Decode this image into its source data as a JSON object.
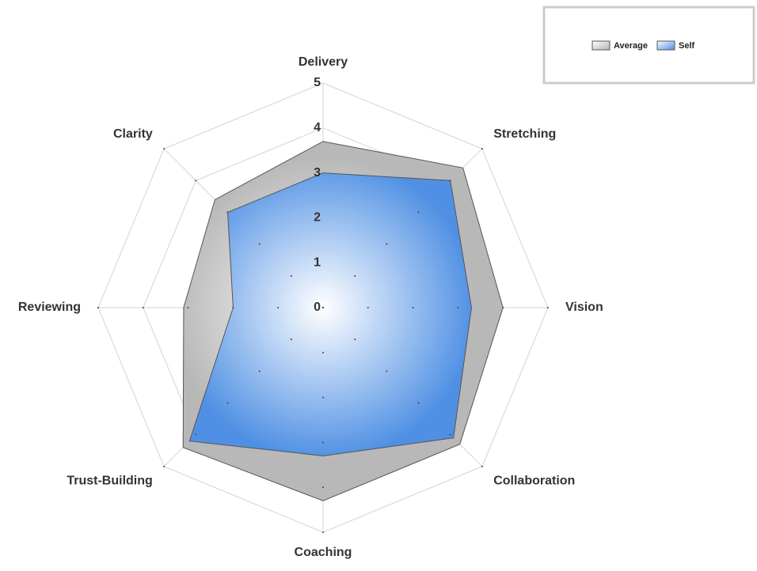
{
  "chart_data": {
    "type": "radar",
    "categories": [
      "Delivery",
      "Stretching",
      "Vision",
      "Collaboration",
      "Coaching",
      "Trust-Building",
      "Reviewing",
      "Clarity"
    ],
    "series": [
      {
        "name": "Average",
        "color": "#b4b4b4",
        "values": [
          3.7,
          4.4,
          4.0,
          4.3,
          4.3,
          4.4,
          3.1,
          3.4
        ]
      },
      {
        "name": "Self",
        "color": "#4a8ee6",
        "values": [
          3.0,
          4.0,
          3.3,
          4.1,
          3.3,
          4.2,
          2.0,
          3.0
        ]
      }
    ],
    "ylim": [
      0,
      5
    ],
    "yticks": [
      0,
      1,
      2,
      3,
      4,
      5
    ],
    "grid": true,
    "legend": "top-right"
  }
}
